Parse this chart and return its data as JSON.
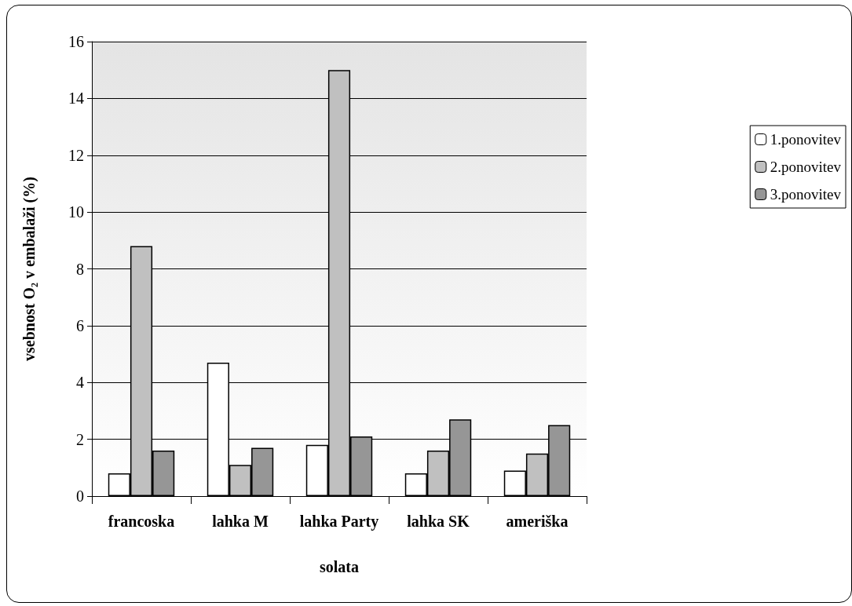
{
  "chart_data": {
    "type": "bar",
    "xlabel": "solata",
    "ylabel": "vsebnost O₂ v embalaži (%)",
    "categories": [
      "francoska",
      "lahka M",
      "lahka Party",
      "lahka SK",
      "ameriška"
    ],
    "series": [
      {
        "name": "1.ponovitev",
        "color": "#ffffff",
        "values": [
          0.8,
          4.7,
          1.8,
          0.8,
          0.9
        ]
      },
      {
        "name": "2.ponovitev",
        "color": "#c0c0c0",
        "values": [
          8.8,
          1.1,
          15,
          1.6,
          1.5
        ]
      },
      {
        "name": "3.ponovitev",
        "color": "#969696",
        "values": [
          1.6,
          1.7,
          2.1,
          2.7,
          2.5
        ]
      }
    ],
    "ylim": [
      0,
      16
    ],
    "yticks": [
      0,
      2,
      4,
      6,
      8,
      10,
      12,
      14,
      16
    ],
    "grid": "y",
    "legend": "right"
  }
}
